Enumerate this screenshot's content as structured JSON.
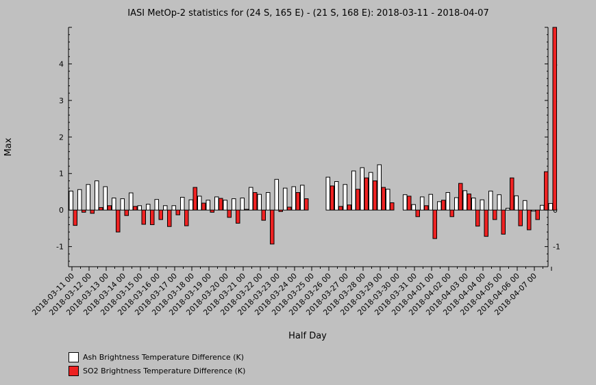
{
  "chart_data": {
    "type": "bar",
    "title": "IASI MetOp-2 statistics for (24 S, 165 E) - (21 S, 168 E): 2018-03-11 - 2018-04-07",
    "xlabel": "Half Day",
    "ylabel": "Max",
    "ylim": [
      -1.55,
      5.0
    ],
    "yticks": [
      -1,
      0,
      1,
      2,
      3,
      4
    ],
    "grid": false,
    "legend_position": "bottom-left",
    "x_tick_labels": [
      "2018-03-11 00",
      "2018-03-12 00",
      "2018-03-13 00",
      "2018-03-14 00",
      "2018-03-15 00",
      "2018-03-16 00",
      "2018-03-17 00",
      "2018-03-18 00",
      "2018-03-19 00",
      "2018-03-20 00",
      "2018-03-21 00",
      "2018-03-22 00",
      "2018-03-23 00",
      "2018-03-24 00",
      "2018-03-25 00",
      "2018-03-26 00",
      "2018-03-27 00",
      "2018-03-28 00",
      "2018-03-29 00",
      "2018-03-30 00",
      "2018-03-31 00",
      "2018-04-01 00",
      "2018-04-02 00",
      "2018-04-03 00",
      "2018-04-04 00",
      "2018-04-05 00",
      "2018-04-06 00",
      "2018-04-07 00"
    ],
    "series": [
      {
        "name": "Ash Brightness Temperature Difference (K)",
        "color": "#ffffff",
        "values": [
          0.52,
          0.56,
          0.7,
          0.8,
          0.64,
          0.33,
          0.31,
          0.47,
          0.12,
          0.16,
          0.29,
          0.12,
          0.12,
          0.35,
          0.28,
          0.38,
          0.27,
          0.36,
          0.27,
          0.31,
          0.33,
          0.62,
          0.43,
          0.48,
          0.84,
          0.6,
          0.64,
          0.68,
          null,
          null,
          0.9,
          0.78,
          0.7,
          1.07,
          1.16,
          1.03,
          1.24,
          0.57,
          null,
          0.42,
          0.15,
          0.36,
          0.43,
          0.23,
          0.48,
          0.34,
          0.53,
          0.33,
          0.28,
          0.52,
          0.42,
          0.05,
          0.39,
          0.26,
          -0.03,
          0.13,
          0.18
        ]
      },
      {
        "name": "SO2 Brightness Temperature Difference (K)",
        "color": "#ee2222",
        "values": [
          -0.42,
          -0.06,
          -0.09,
          0.07,
          0.12,
          -0.6,
          -0.15,
          0.1,
          -0.39,
          -0.4,
          -0.26,
          -0.45,
          -0.13,
          -0.43,
          0.62,
          0.19,
          -0.06,
          0.32,
          -0.2,
          -0.36,
          0.02,
          0.48,
          -0.28,
          -0.93,
          -0.04,
          0.08,
          0.48,
          0.31,
          null,
          null,
          0.66,
          0.1,
          0.14,
          0.57,
          0.88,
          0.8,
          0.62,
          0.2,
          null,
          0.38,
          -0.18,
          0.12,
          -0.78,
          0.27,
          -0.18,
          0.73,
          0.44,
          -0.44,
          -0.72,
          -0.26,
          -0.66,
          0.88,
          -0.43,
          -0.54,
          -0.26,
          1.05,
          5.0
        ]
      }
    ]
  },
  "legend": {
    "ash_label": "Ash Brightness Temperature Difference (K)",
    "so2_label": "SO2 Brightness Temperature Difference (K)"
  }
}
